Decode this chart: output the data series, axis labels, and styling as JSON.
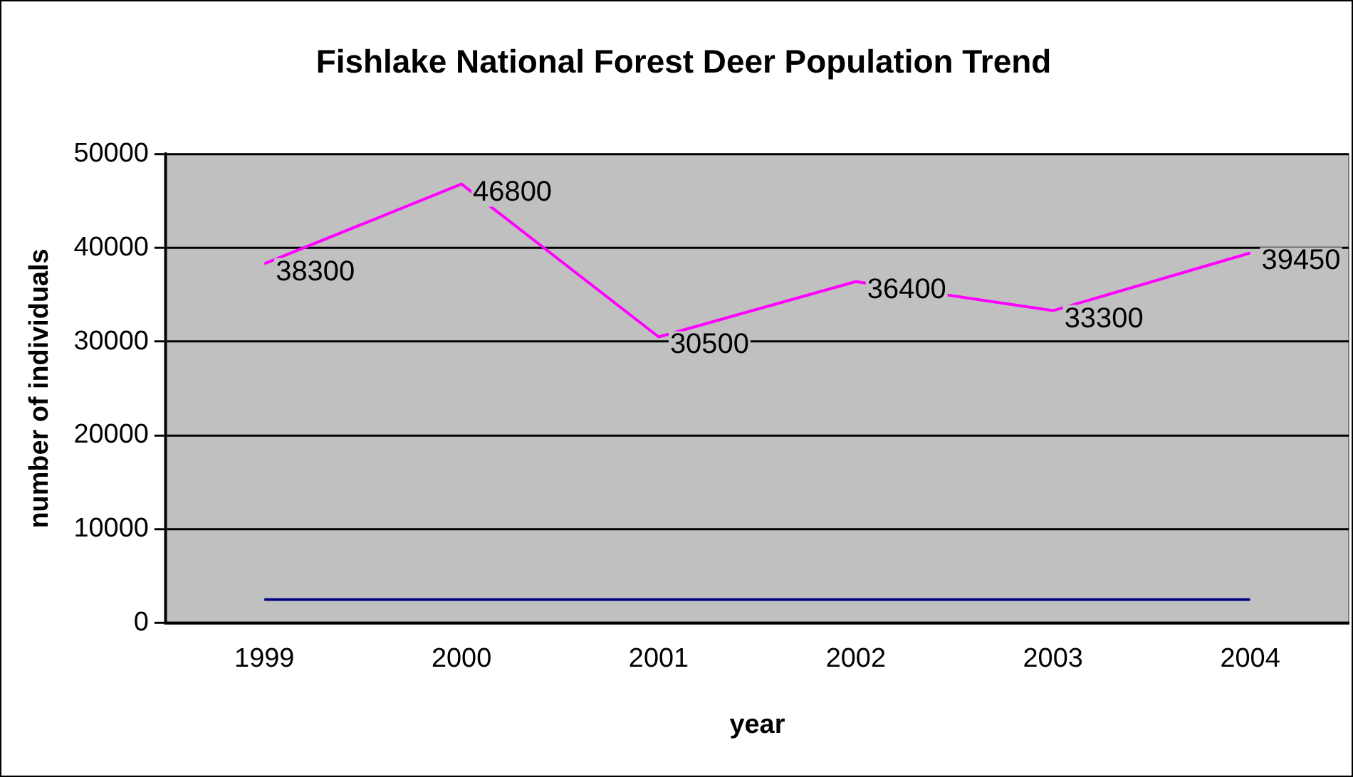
{
  "chart_data": {
    "type": "line",
    "title": "Fishlake National Forest Deer Population Trend",
    "xlabel": "year",
    "ylabel": "number of individuals",
    "categories": [
      "1999",
      "2000",
      "2001",
      "2002",
      "2003",
      "2004"
    ],
    "series": [
      {
        "color": "#ff00ff",
        "values": [
          38300,
          46800,
          30500,
          36400,
          33300,
          39450
        ],
        "value_labels": [
          "38300",
          "46800",
          "30500",
          "36400",
          "33300",
          "39450"
        ]
      },
      {
        "color": "#000080",
        "values": [
          2500,
          2500,
          2500,
          2500,
          2500,
          2500
        ]
      }
    ],
    "ylim": [
      0,
      50000
    ],
    "yticks": [
      0,
      10000,
      20000,
      30000,
      40000,
      50000
    ],
    "grid": "y",
    "legend": false,
    "marker": "none",
    "line_style": "solid"
  }
}
